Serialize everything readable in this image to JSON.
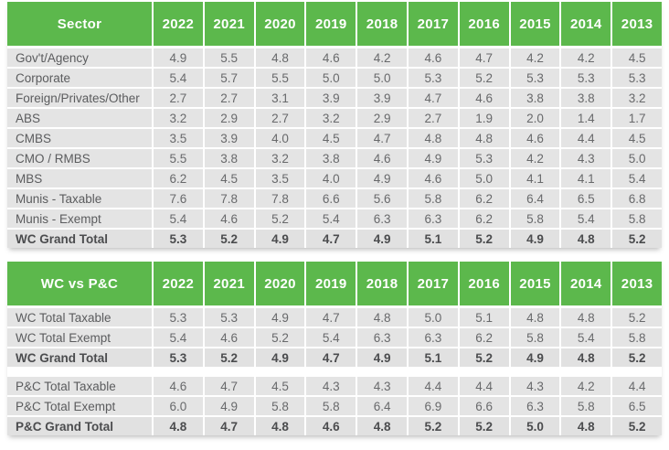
{
  "colors": {
    "header_green": "#5CB84C",
    "row_bg": "#E4E4E4",
    "total_row_bg": "#E1E1E1",
    "header_text": "#FFFFFF",
    "body_text": "#68696B"
  },
  "chart_data": [
    {
      "type": "table",
      "header_label": "Sector",
      "years": [
        "2022",
        "2021",
        "2020",
        "2019",
        "2018",
        "2017",
        "2016",
        "2015",
        "2014",
        "2013"
      ],
      "sections": [
        {
          "rows": [
            {
              "label": "Gov't/Agency",
              "values": [
                "4.9",
                "5.5",
                "4.8",
                "4.6",
                "4.2",
                "4.6",
                "4.7",
                "4.2",
                "4.2",
                "4.5"
              ],
              "bold": false
            },
            {
              "label": "Corporate",
              "values": [
                "5.4",
                "5.7",
                "5.5",
                "5.0",
                "5.0",
                "5.3",
                "5.2",
                "5.3",
                "5.3",
                "5.3"
              ],
              "bold": false
            },
            {
              "label": "Foreign/Privates/Other",
              "values": [
                "2.7",
                "2.7",
                "3.1",
                "3.9",
                "3.9",
                "4.7",
                "4.6",
                "3.8",
                "3.8",
                "3.2"
              ],
              "bold": false
            },
            {
              "label": "ABS",
              "values": [
                "3.2",
                "2.9",
                "2.7",
                "3.2",
                "2.9",
                "2.7",
                "1.9",
                "2.0",
                "1.4",
                "1.7"
              ],
              "bold": false
            },
            {
              "label": "CMBS",
              "values": [
                "3.5",
                "3.9",
                "4.0",
                "4.5",
                "4.7",
                "4.8",
                "4.8",
                "4.6",
                "4.4",
                "4.5"
              ],
              "bold": false
            },
            {
              "label": "CMO / RMBS",
              "values": [
                "5.5",
                "3.8",
                "3.2",
                "3.8",
                "4.6",
                "4.9",
                "5.3",
                "4.2",
                "4.3",
                "5.0"
              ],
              "bold": false
            },
            {
              "label": "MBS",
              "values": [
                "6.2",
                "4.5",
                "3.5",
                "4.0",
                "4.9",
                "4.6",
                "5.0",
                "4.1",
                "4.1",
                "5.4"
              ],
              "bold": false
            },
            {
              "label": "Munis - Taxable",
              "values": [
                "7.6",
                "7.8",
                "7.8",
                "6.6",
                "5.6",
                "5.8",
                "6.2",
                "6.4",
                "6.5",
                "6.8"
              ],
              "bold": false
            },
            {
              "label": "Munis - Exempt",
              "values": [
                "5.4",
                "4.6",
                "5.2",
                "5.4",
                "6.3",
                "6.3",
                "6.2",
                "5.8",
                "5.4",
                "5.8"
              ],
              "bold": false
            },
            {
              "label": "WC Grand Total",
              "values": [
                "5.3",
                "5.2",
                "4.9",
                "4.7",
                "4.9",
                "5.1",
                "5.2",
                "4.9",
                "4.8",
                "5.2"
              ],
              "bold": true
            }
          ]
        }
      ]
    },
    {
      "type": "table",
      "header_label": "WC vs P&C",
      "years": [
        "2022",
        "2021",
        "2020",
        "2019",
        "2018",
        "2017",
        "2016",
        "2015",
        "2014",
        "2013"
      ],
      "sections": [
        {
          "rows": [
            {
              "label": "WC Total Taxable",
              "values": [
                "5.3",
                "5.3",
                "4.9",
                "4.7",
                "4.8",
                "5.0",
                "5.1",
                "4.8",
                "4.8",
                "5.2"
              ],
              "bold": false
            },
            {
              "label": "WC Total Exempt",
              "values": [
                "5.4",
                "4.6",
                "5.2",
                "5.4",
                "6.3",
                "6.3",
                "6.2",
                "5.8",
                "5.4",
                "5.8"
              ],
              "bold": false
            },
            {
              "label": "WC Grand Total",
              "values": [
                "5.3",
                "5.2",
                "4.9",
                "4.7",
                "4.9",
                "5.1",
                "5.2",
                "4.9",
                "4.8",
                "5.2"
              ],
              "bold": true
            }
          ]
        },
        {
          "rows": [
            {
              "label": "P&C Total Taxable",
              "values": [
                "4.6",
                "4.7",
                "4.5",
                "4.3",
                "4.3",
                "4.4",
                "4.4",
                "4.3",
                "4.2",
                "4.4"
              ],
              "bold": false
            },
            {
              "label": "P&C Total Exempt",
              "values": [
                "6.0",
                "4.9",
                "5.8",
                "5.8",
                "6.4",
                "6.9",
                "6.6",
                "6.3",
                "5.8",
                "6.5"
              ],
              "bold": false
            },
            {
              "label": "P&C Grand Total",
              "values": [
                "4.8",
                "4.7",
                "4.8",
                "4.6",
                "4.8",
                "5.2",
                "5.2",
                "5.0",
                "4.8",
                "5.2"
              ],
              "bold": true
            }
          ]
        }
      ]
    }
  ]
}
